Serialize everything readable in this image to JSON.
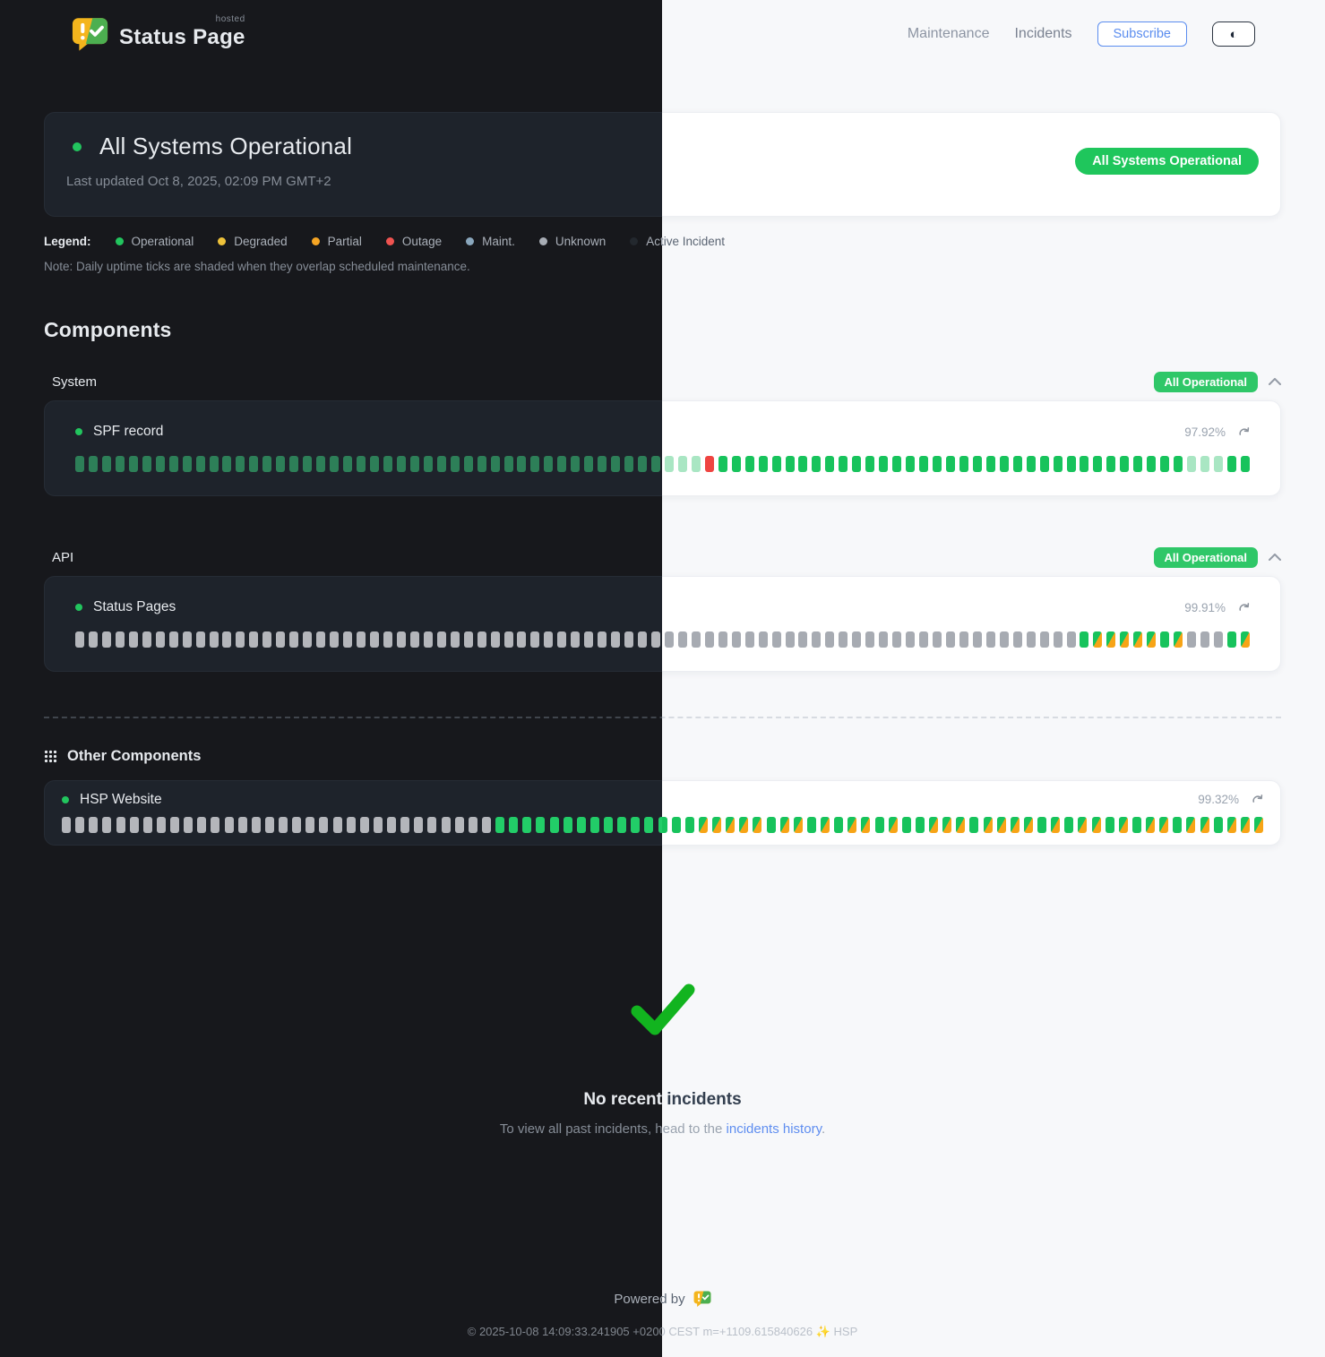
{
  "brand": {
    "name": "Status Page",
    "hosted": "hosted"
  },
  "nav": {
    "maintenance": "Maintenance",
    "incidents": "Incidents",
    "subscribe": "Subscribe",
    "theme_toggle_icon": "◐"
  },
  "banner": {
    "title": "All Systems Operational",
    "last_updated": "Last updated Oct 8, 2025, 02:09 PM GMT+2",
    "badge": "All Systems Operational"
  },
  "legend": {
    "label": "Legend:",
    "items": [
      {
        "name": "Operational",
        "color": "#22c55e"
      },
      {
        "name": "Degraded",
        "color": "#eec23a"
      },
      {
        "name": "Partial",
        "color": "#f5a524"
      },
      {
        "name": "Outage",
        "color": "#ef5350"
      },
      {
        "name": "Maint.",
        "color": "#8aa7bd"
      },
      {
        "name": "Unknown",
        "color": "#a8adb5"
      },
      {
        "name": "Active Incident",
        "color": "#23282e"
      }
    ],
    "note": "Note: Daily uptime ticks are shaded when they overlap scheduled maintenance."
  },
  "components": {
    "heading": "Components",
    "groups": [
      {
        "name": "System",
        "badge": "All Operational",
        "rows": [
          {
            "name": "SPF record",
            "uptime": "97.92%",
            "ticks": "ggggggggggggggggggggggggggggggggggggggggggggfffxooooooooooooooooooooooooooooooooooofffoo"
          }
        ]
      },
      {
        "name": "API",
        "badge": "All Operational",
        "rows": [
          {
            "name": "Status Pages",
            "uptime": "99.91%",
            "ticks": "uuuuuuuuuuuuuuuuuuuuuuuuuuuuuuuuuuuuuuuuuuuuuuuuuuuuuuuuuuuuuuuuuuuuuuuuuuuommmmmomuuuom"
          }
        ]
      }
    ],
    "other": {
      "heading": "Other Components",
      "rows": [
        {
          "name": "HSP Website",
          "uptime": "99.32%",
          "ticks": "uuuuuuuuuuuuuuuuuuuuuuuuuuuuuuuuooooooooooooooommmmmommomommomoommmommmmomommomommommommm"
        }
      ]
    }
  },
  "incidents_section": {
    "title": "No recent incidents",
    "subtitle_prefix": "To view all past incidents, head to the ",
    "link": "incidents history",
    "suffix": "."
  },
  "footer": {
    "powered_by": "Powered by",
    "copyright": "© 2025-10-08 14:09:33.241905 +0200 CEST m=+1109.615840626 ✨ HSP"
  },
  "tick_status_legend": {
    "g": "operational (dimmed)",
    "o": "operational",
    "f": "operational (faded/partial data)",
    "x": "outage",
    "u": "unknown",
    "m": "operational shaded by scheduled maintenance"
  },
  "colors": {
    "accent_green": "#1fc65c",
    "badge_green": "#2fc768",
    "link_blue": "#5b8def",
    "outage_red": "#ef4441",
    "maintenance_orange": "#f7a416",
    "check_green": "#12b41f"
  }
}
